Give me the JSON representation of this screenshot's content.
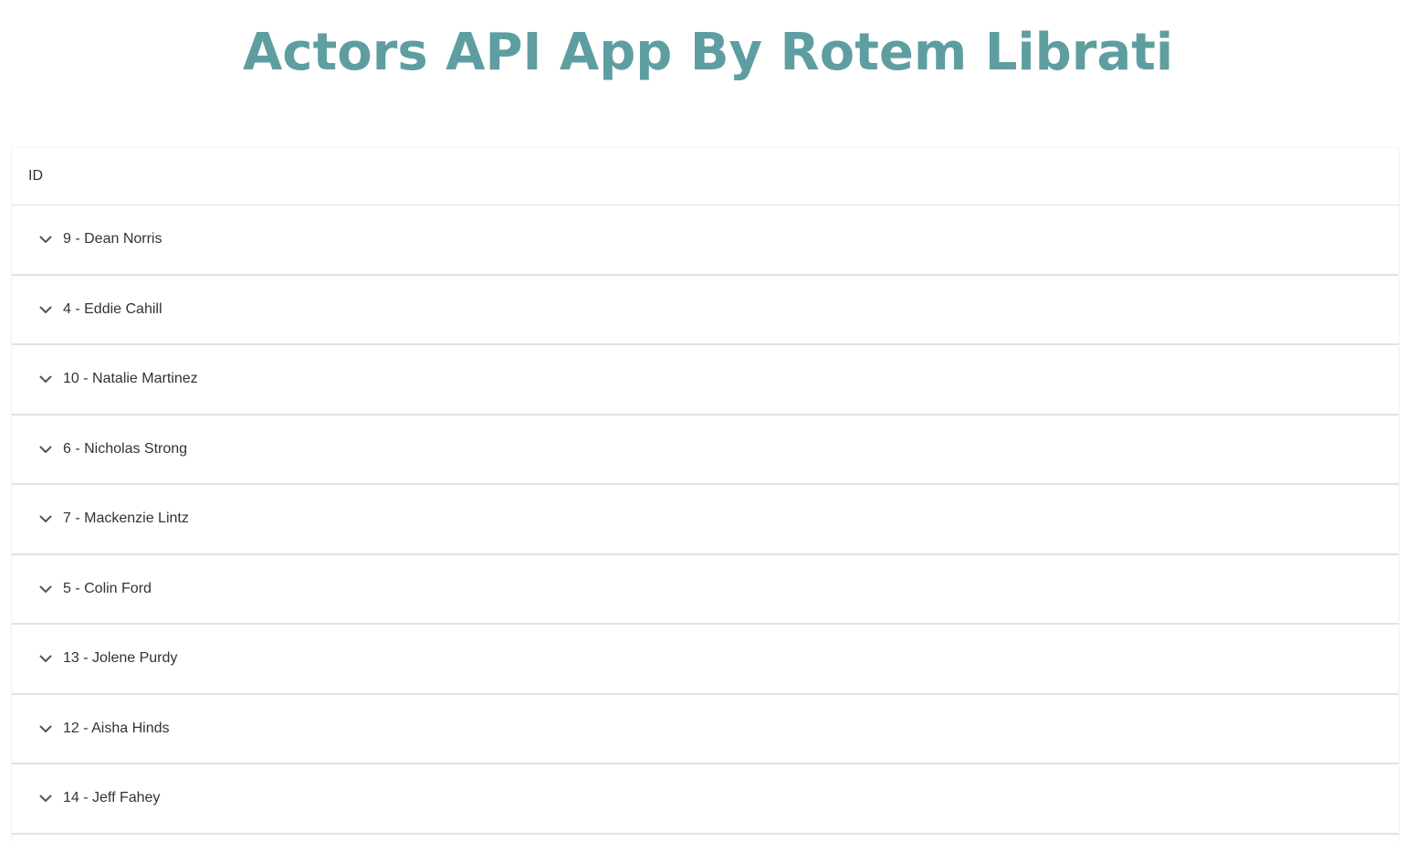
{
  "header": {
    "title": "Actors API App By Rotem Librati"
  },
  "table": {
    "column_header": "ID",
    "rows": [
      {
        "label": "9 - Dean Norris"
      },
      {
        "label": "4 - Eddie Cahill"
      },
      {
        "label": "10 - Natalie Martinez"
      },
      {
        "label": "6 - Nicholas Strong"
      },
      {
        "label": "7 - Mackenzie Lintz"
      },
      {
        "label": "5 - Colin Ford"
      },
      {
        "label": "13 - Jolene Purdy"
      },
      {
        "label": "12 - Aisha Hinds"
      },
      {
        "label": "14 - Jeff Fahey"
      }
    ]
  },
  "icons": {
    "expand": "chevron-down-icon"
  },
  "colors": {
    "title": "#5f9ea0",
    "text": "#333333",
    "divider": "#e2e2e2"
  }
}
